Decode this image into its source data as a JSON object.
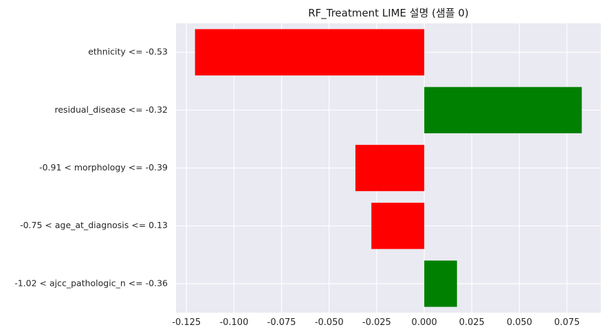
{
  "chart_data": {
    "type": "bar",
    "orientation": "horizontal",
    "title": "RF_Treatment LIME 설명 (샘플 0)",
    "xlabel": "",
    "ylabel": "",
    "categories": [
      "ethnicity <= -0.53",
      "residual_disease <= -0.32",
      "-0.91 < morphology <= -0.39",
      "-0.75 < age_at_diagnosis <= 0.13",
      "-1.02 < ajcc_pathologic_n <= -0.36"
    ],
    "values": [
      -0.1205,
      0.0828,
      -0.0362,
      -0.0278,
      0.0172
    ],
    "colors": [
      "#ff0000",
      "#008000",
      "#ff0000",
      "#ff0000",
      "#008000"
    ],
    "xlim": [
      -0.1305,
      0.0928
    ],
    "xticks": [
      -0.125,
      -0.1,
      -0.075,
      -0.05,
      -0.025,
      0.0,
      0.025,
      0.05,
      0.075
    ],
    "xtick_labels": [
      "-0.125",
      "-0.100",
      "-0.075",
      "-0.050",
      "-0.025",
      "0.000",
      "0.025",
      "0.050",
      "0.075"
    ],
    "background": "#eaeaf2",
    "grid": true,
    "legend": "none"
  }
}
